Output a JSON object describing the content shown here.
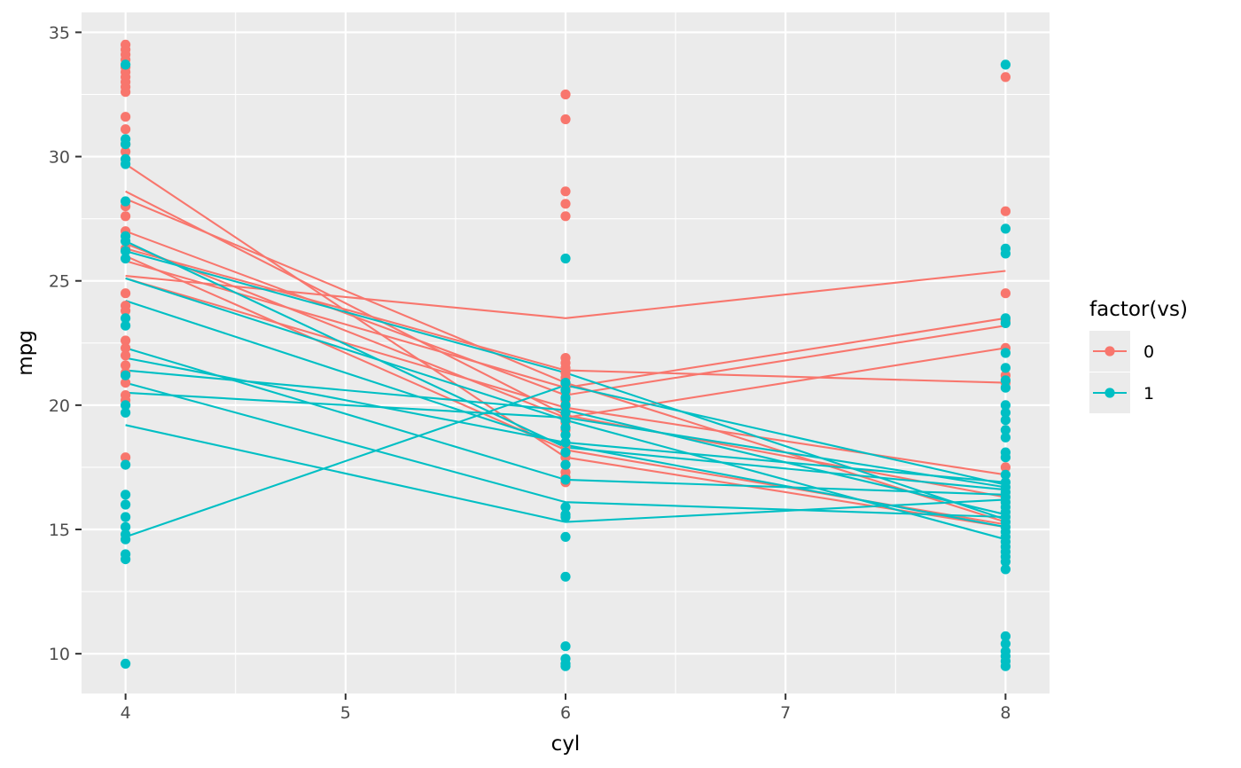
{
  "chart_data": {
    "type": "scatter",
    "xlabel": "cyl",
    "ylabel": "mpg",
    "xlim": [
      3.8,
      8.2
    ],
    "ylim": [
      8.4,
      35.8
    ],
    "x_ticks": [
      4,
      5,
      6,
      7,
      8
    ],
    "y_ticks": [
      10,
      15,
      20,
      25,
      30,
      35
    ],
    "grid": true,
    "legend": {
      "title": "factor(vs)",
      "placement": "right",
      "entries": [
        {
          "label": "0",
          "color": "#F8766D"
        },
        {
          "label": "1",
          "color": "#00BFC4"
        }
      ]
    },
    "background": "#EBEBEB",
    "gridline_color": "#FFFFFF",
    "series": [
      {
        "name": "0",
        "color": "#F8766D",
        "points": [
          {
            "x": 4,
            "y": [
              34.5,
              34.3,
              34.1,
              33.9,
              33.6,
              33.4,
              33.2,
              33.0,
              32.8,
              32.6,
              31.6,
              31.1,
              30.5,
              30.2,
              29.9,
              28.0,
              27.6,
              27.0,
              26.3,
              24.5,
              24.0,
              23.8,
              22.6,
              22.3,
              22.0,
              21.6,
              21.3,
              20.9,
              20.4,
              20.2,
              17.9
            ]
          },
          {
            "x": 6,
            "y": [
              32.5,
              31.5,
              28.6,
              28.1,
              27.6,
              21.9,
              21.7,
              21.5,
              21.3,
              21.1,
              20.8,
              20.5,
              20.2,
              19.9,
              19.6,
              19.3,
              19.0,
              18.3,
              18.1,
              17.9,
              17.6,
              17.3,
              17.1,
              16.9
            ]
          },
          {
            "x": 8,
            "y": [
              33.2,
              27.8,
              24.5,
              23.4,
              22.3,
              21.2,
              20.9,
              17.5
            ]
          }
        ],
        "lines": [
          {
            "x": [
              4,
              6,
              8
            ],
            "y": [
              29.7,
              17.9,
              15.1
            ]
          },
          {
            "x": [
              4,
              6,
              8
            ],
            "y": [
              28.6,
              19.6,
              16.3
            ]
          },
          {
            "x": [
              4,
              6,
              8
            ],
            "y": [
              28.3,
              20.9,
              15.3
            ]
          },
          {
            "x": [
              4,
              6,
              8
            ],
            "y": [
              27.0,
              20.4,
              23.2
            ]
          },
          {
            "x": [
              4,
              6,
              8
            ],
            "y": [
              26.5,
              19.5,
              22.3
            ]
          },
          {
            "x": [
              4,
              6,
              8
            ],
            "y": [
              26.3,
              21.4,
              20.9
            ]
          },
          {
            "x": [
              4,
              6,
              8
            ],
            "y": [
              26.0,
              18.2,
              15.2
            ]
          },
          {
            "x": [
              4,
              6,
              8
            ],
            "y": [
              25.8,
              20.7,
              23.5
            ]
          },
          {
            "x": [
              4,
              6,
              8
            ],
            "y": [
              25.2,
              23.5,
              25.4
            ]
          },
          {
            "x": [
              4,
              6,
              8
            ],
            "y": [
              25.1,
              19.9,
              17.2
            ]
          }
        ]
      },
      {
        "name": "1",
        "color": "#00BFC4",
        "points": [
          {
            "x": 4,
            "y": [
              33.7,
              30.7,
              30.5,
              29.9,
              29.7,
              28.2,
              26.8,
              26.6,
              26.2,
              25.9,
              23.5,
              23.2,
              21.2,
              20.0,
              19.7,
              17.6,
              16.4,
              16.0,
              15.5,
              15.1,
              14.8,
              14.6,
              14.0,
              13.8,
              9.6
            ]
          },
          {
            "x": 6,
            "y": [
              25.9,
              20.9,
              20.6,
              20.3,
              20.0,
              19.7,
              19.4,
              19.1,
              18.8,
              18.5,
              18.1,
              17.6,
              17.0,
              15.9,
              15.6,
              15.5,
              14.7,
              13.1,
              10.3,
              9.8,
              9.6,
              9.5
            ]
          },
          {
            "x": 8,
            "y": [
              33.7,
              27.1,
              26.3,
              26.1,
              23.5,
              23.3,
              22.1,
              21.5,
              21.0,
              20.7,
              20.0,
              19.7,
              19.4,
              19.0,
              18.7,
              18.1,
              17.9,
              17.2,
              16.9,
              16.7,
              16.5,
              16.3,
              16.1,
              15.9,
              15.7,
              15.5,
              15.3,
              15.1,
              14.9,
              14.7,
              14.5,
              14.3,
              14.1,
              13.9,
              13.7,
              13.4,
              10.7,
              10.4,
              10.1,
              9.9,
              9.7,
              9.5
            ]
          }
        ],
        "lines": [
          {
            "x": [
              4,
              6,
              8
            ],
            "y": [
              26.6,
              18.3,
              16.6
            ]
          },
          {
            "x": [
              4,
              6,
              8
            ],
            "y": [
              26.2,
              21.3,
              15.4
            ]
          },
          {
            "x": [
              4,
              6,
              8
            ],
            "y": [
              25.1,
              19.4,
              14.6
            ]
          },
          {
            "x": [
              4,
              6,
              8
            ],
            "y": [
              24.2,
              18.4,
              15.1
            ]
          },
          {
            "x": [
              4,
              6,
              8
            ],
            "y": [
              22.3,
              17.0,
              16.4
            ]
          },
          {
            "x": [
              4,
              6,
              8
            ],
            "y": [
              21.9,
              18.5,
              16.9
            ]
          },
          {
            "x": [
              4,
              6,
              8
            ],
            "y": [
              21.4,
              19.8,
              15.6
            ]
          },
          {
            "x": [
              4,
              6,
              8
            ],
            "y": [
              20.9,
              16.1,
              15.5
            ]
          },
          {
            "x": [
              4,
              6,
              8
            ],
            "y": [
              20.5,
              19.5,
              16.7
            ]
          },
          {
            "x": [
              4,
              6,
              8
            ],
            "y": [
              19.2,
              15.3,
              16.2
            ]
          },
          {
            "x": [
              4,
              6,
              8
            ],
            "y": [
              14.7,
              20.8,
              16.8
            ]
          }
        ]
      }
    ]
  }
}
